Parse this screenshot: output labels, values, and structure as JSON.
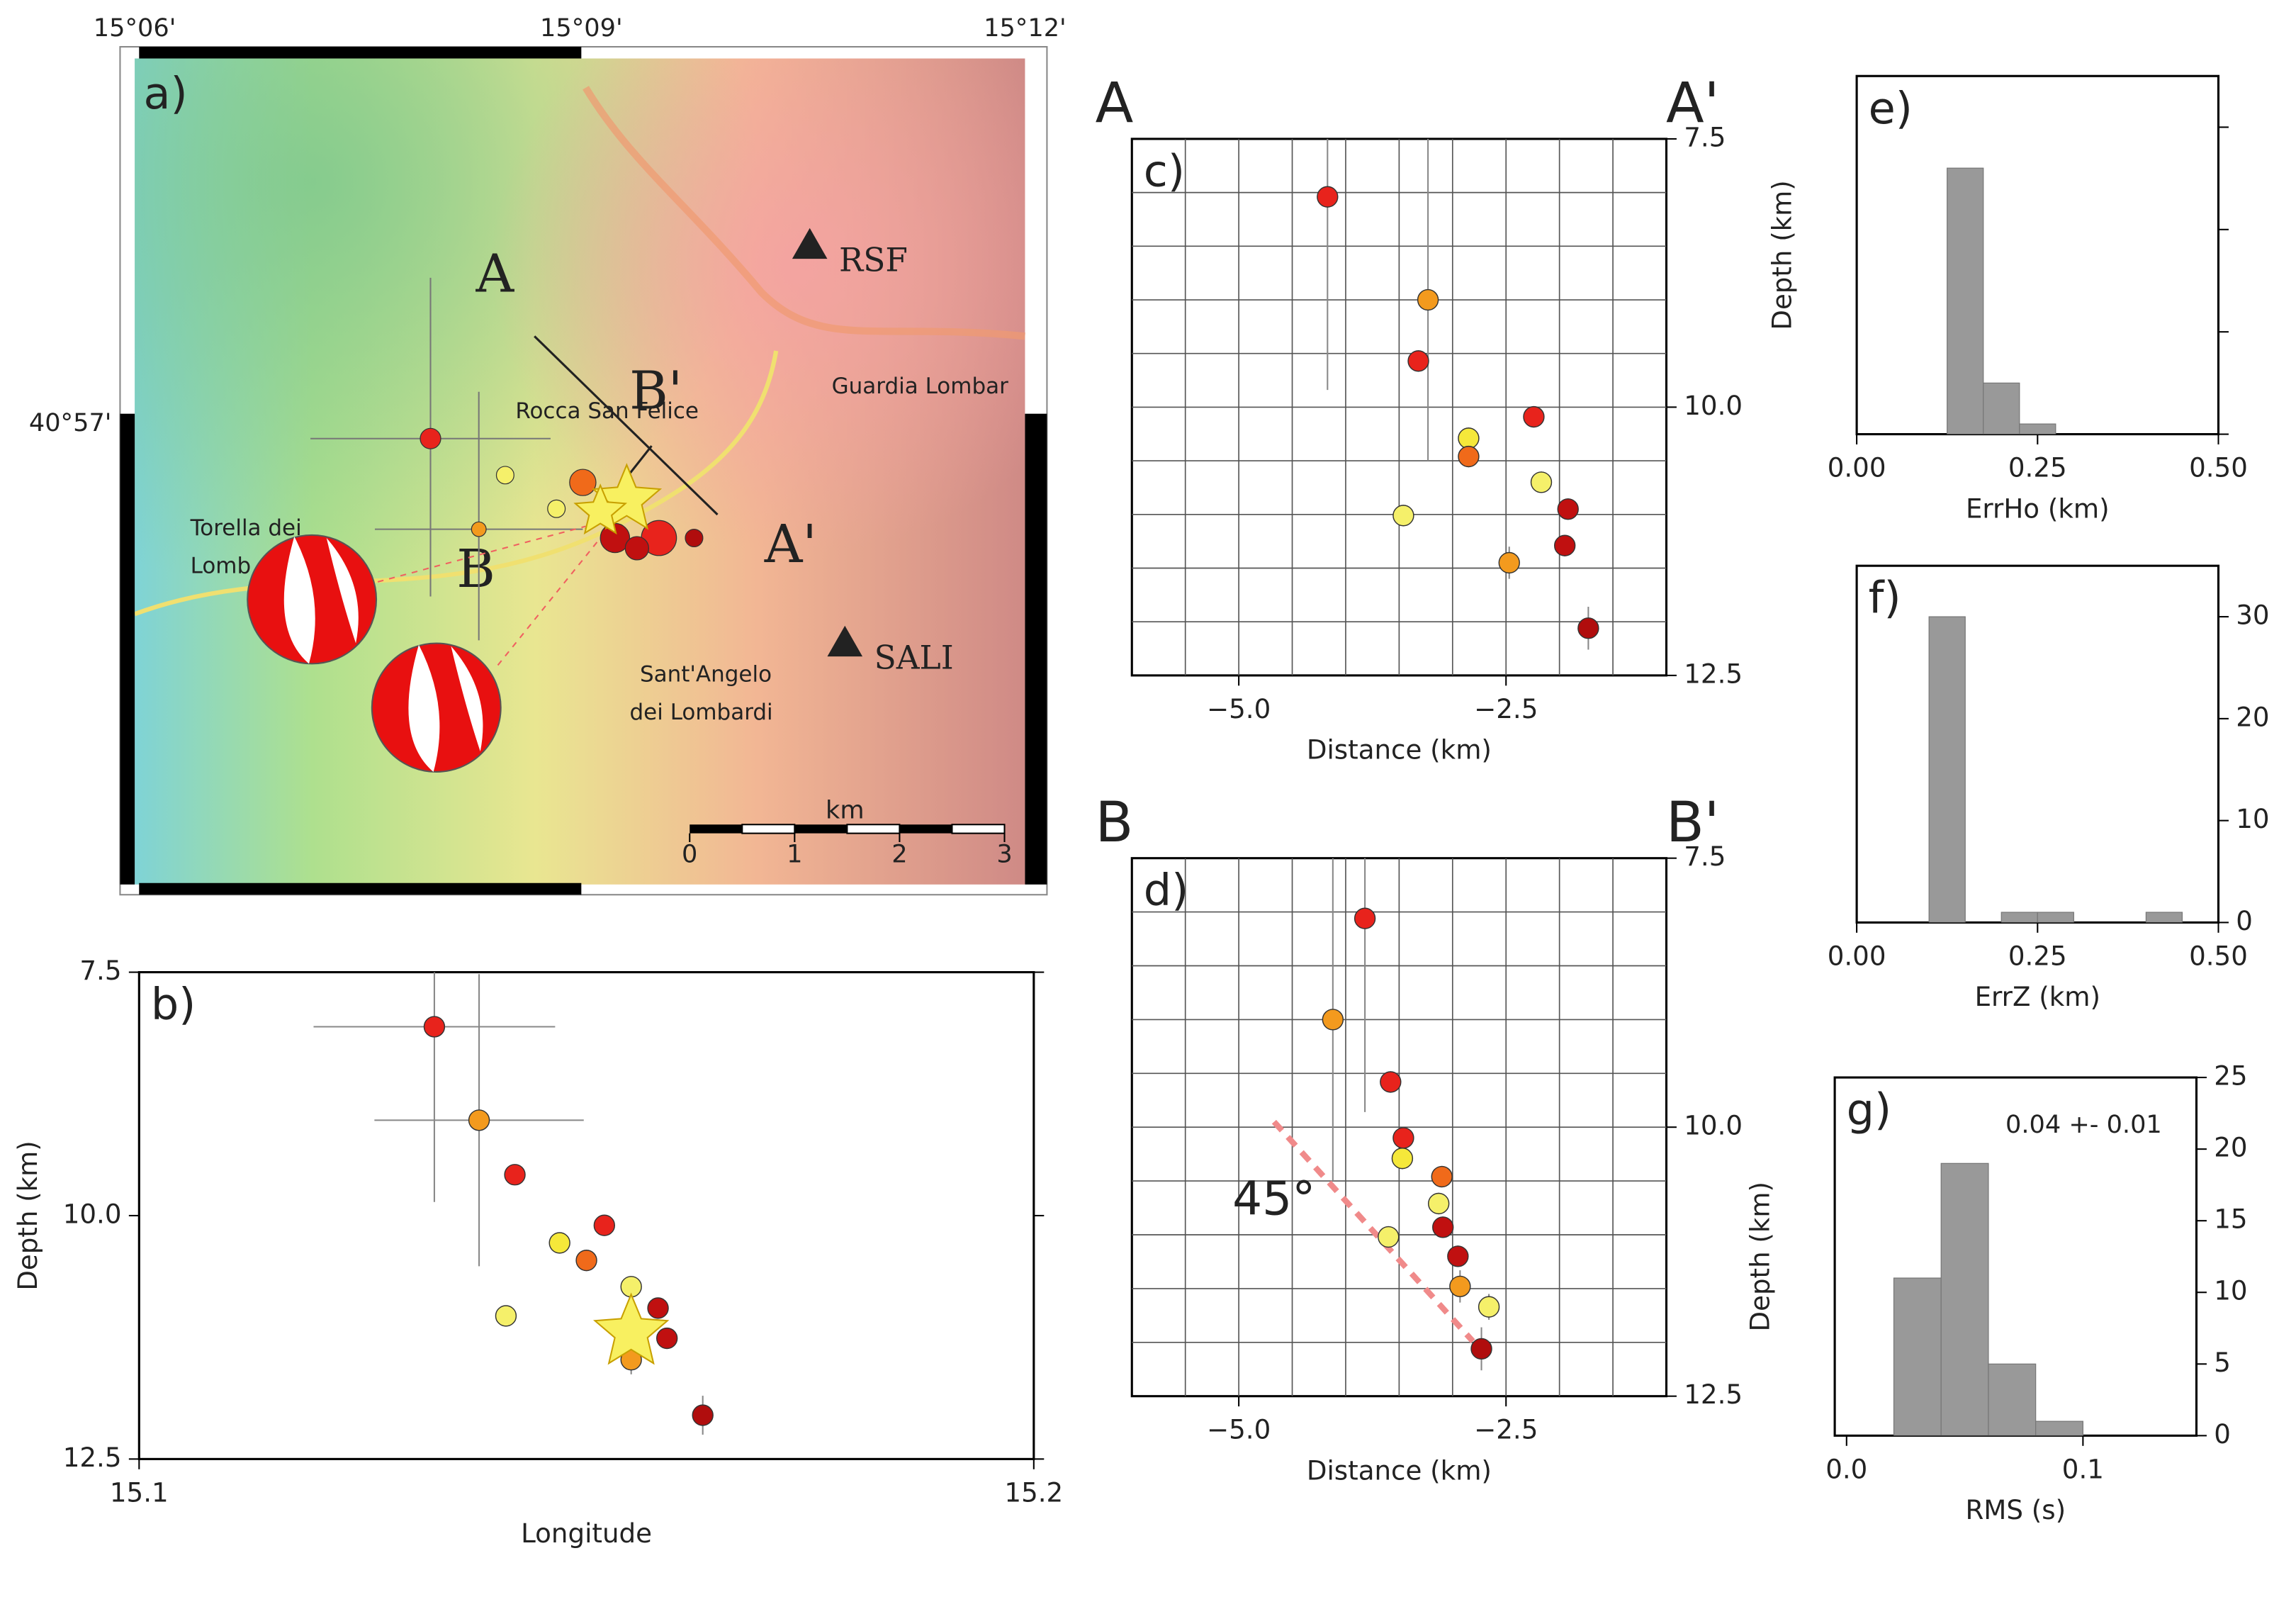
{
  "chart_data": [
    {
      "type": "map",
      "panel_label": "a)",
      "section_labels": [
        "A",
        "B'",
        "B",
        "A'"
      ],
      "stations": [
        "RSF",
        "SALI"
      ],
      "towns": [
        "Rocca San Felice",
        "Guardia Lombar",
        "Torella dei",
        "Lomb",
        "Sant'Angelo",
        "dei Lombardi"
      ],
      "lon_ticks": [
        "15°06'",
        "15°09'",
        "15°12'"
      ],
      "lat_ticks": [
        "40°57'"
      ],
      "scale_label": "km",
      "scale_ticks": [
        0,
        1,
        2,
        3
      ]
    },
    {
      "type": "scatter",
      "panel_label": "b)",
      "xlabel": "Longitude",
      "ylabel": "Depth (km)",
      "xlim": [
        15.1,
        15.2
      ],
      "xticks": [
        15.1,
        15.2
      ],
      "ylim": [
        7.5,
        12.5
      ],
      "yticks": [
        7.5,
        {
          "value": 10,
          "label": "10.0"
        },
        12.5
      ],
      "yinvert": true,
      "yaxis_side": "left",
      "x": [
        15.133,
        15.138,
        15.142,
        15.152,
        15.147,
        15.15,
        15.141,
        15.155,
        15.158,
        15.159,
        15.155,
        15.163
      ],
      "values": [
        8.06,
        9.02,
        9.58,
        10.1,
        10.28,
        10.46,
        11.03,
        10.73,
        10.95,
        11.26,
        11.48,
        12.05
      ],
      "xerr": [
        0.0135,
        0.0117,
        0.001,
        0.001,
        0.001,
        0.001,
        0.001,
        0.001,
        0.001,
        0.001,
        0.001,
        0.001
      ],
      "yerr": [
        1.8,
        1.5,
        0.1,
        0.1,
        0.1,
        0.1,
        0.1,
        0.1,
        0.1,
        0.1,
        0.15,
        0.2
      ],
      "colors": [
        "#e8231c",
        "#f39a1e",
        "#e8231c",
        "#e8231c",
        "#f5e83a",
        "#f06a1a",
        "#f5f06a",
        "#f5f06a",
        "#c01010",
        "#c01010",
        "#f39a1e",
        "#b00d0d"
      ],
      "star": {
        "x": 15.155,
        "value": 11.2
      }
    },
    {
      "type": "scatter",
      "panel_label": "c)",
      "section_start": "A",
      "section_end": "A'",
      "xlabel": "Distance (km)",
      "xlim": [
        -6,
        -1
      ],
      "xticks": [
        {
          "value": -5,
          "label": "−5.0"
        },
        {
          "value": -2.5,
          "label": "−2.5"
        }
      ],
      "ylim": [
        7.5,
        12.5
      ],
      "yticks": [
        7.5,
        {
          "value": 10,
          "label": "10.0"
        },
        12.5
      ],
      "yinvert": true,
      "yaxis_side": "right",
      "xgrid": [
        -5.5,
        -5,
        -4.5,
        -4,
        -3.5,
        -3,
        -2.5,
        -2,
        -1.5
      ],
      "ygrid": [
        8,
        8.5,
        9,
        9.5,
        10,
        10.5,
        11,
        11.5,
        12
      ],
      "x": [
        -4.17,
        -3.23,
        -3.32,
        -2.24,
        -2.85,
        -2.85,
        -3.46,
        -2.17,
        -1.92,
        -1.95,
        -2.47,
        -1.73
      ],
      "values": [
        8.04,
        9.0,
        9.57,
        10.09,
        10.29,
        10.46,
        11.01,
        10.7,
        10.95,
        11.29,
        11.45,
        12.06
      ],
      "yerr": [
        1.8,
        1.5,
        0.1,
        0.1,
        0.1,
        0.1,
        0.1,
        0.1,
        0.1,
        0.1,
        0.15,
        0.2
      ],
      "colors": [
        "#e8231c",
        "#f39a1e",
        "#e8231c",
        "#e8231c",
        "#f5e83a",
        "#f06a1a",
        "#f5f06a",
        "#f5f06a",
        "#c01010",
        "#c01010",
        "#f39a1e",
        "#b00d0d"
      ]
    },
    {
      "type": "scatter",
      "panel_label": "d)",
      "section_start": "B",
      "section_end": "B'",
      "xlabel": "Distance (km)",
      "xlim": [
        -6,
        -1
      ],
      "xticks": [
        {
          "value": -5,
          "label": "−5.0"
        },
        {
          "value": -2.5,
          "label": "−2.5"
        }
      ],
      "ylim": [
        7.5,
        12.5
      ],
      "yticks": [
        7.5,
        {
          "value": 10,
          "label": "10.0"
        },
        12.5
      ],
      "yinvert": true,
      "yaxis_side": "right",
      "xgrid": [
        -5.5,
        -5,
        -4.5,
        -4,
        -3.5,
        -3,
        -2.5,
        -2,
        -1.5
      ],
      "ygrid": [
        8,
        8.5,
        9,
        9.5,
        10,
        10.5,
        11,
        11.5,
        12
      ],
      "x": [
        -3.82,
        -4.12,
        -3.58,
        -3.46,
        -3.47,
        -3.1,
        -3.6,
        -3.13,
        -3.09,
        -2.95,
        -2.93,
        -2.66,
        -2.73
      ],
      "values": [
        8.06,
        9.0,
        9.58,
        10.1,
        10.29,
        10.46,
        11.02,
        10.71,
        10.93,
        11.2,
        11.48,
        11.67,
        12.06
      ],
      "yerr": [
        1.8,
        1.5,
        0.1,
        0.1,
        0.1,
        0.1,
        0.1,
        0.1,
        0.1,
        0.1,
        0.15,
        0.12,
        0.2
      ],
      "colors": [
        "#e8231c",
        "#f39a1e",
        "#e8231c",
        "#e8231c",
        "#f5e83a",
        "#f06a1a",
        "#f5f06a",
        "#f5f06a",
        "#c01010",
        "#c01010",
        "#f39a1e",
        "#f5f06a",
        "#b00d0d"
      ],
      "trend": {
        "x": [
          -4.67,
          -2.81
        ],
        "values": [
          9.95,
          11.99
        ],
        "color": "#f08a8a"
      },
      "annotation": "45°"
    },
    {
      "type": "histogram",
      "panel_label": "e)",
      "xlabel": "ErrHo (km)",
      "ylabel": "Depth (km)",
      "color": "#999999",
      "xlim": [
        0,
        0.5
      ],
      "xticks": [
        {
          "value": 0,
          "label": "0.00"
        },
        0.25,
        {
          "value": 0.5,
          "label": "0.50"
        }
      ],
      "ylim": [
        0,
        35
      ],
      "yticks": [
        0,
        10,
        20,
        30
      ],
      "ytick_labels": false,
      "yaxis_side": "right",
      "bins": [
        0.125,
        0.175,
        0.225,
        0.275,
        0.325
      ],
      "counts": [
        26,
        5,
        1,
        0
      ]
    },
    {
      "type": "histogram",
      "panel_label": "f)",
      "xlabel": "ErrZ (km)",
      "color": "#999999",
      "xlim": [
        0,
        0.5
      ],
      "xticks": [
        {
          "value": 0,
          "label": "0.00"
        },
        0.25,
        {
          "value": 0.5,
          "label": "0.50"
        }
      ],
      "ylim": [
        0,
        35
      ],
      "yticks": [
        0,
        10,
        20,
        30
      ],
      "yaxis_side": "right",
      "bins": [
        0.1,
        0.15,
        0.2,
        0.25,
        0.3,
        0.35,
        0.4,
        0.45
      ],
      "counts": [
        30,
        0,
        1,
        1,
        0,
        0,
        1
      ]
    },
    {
      "type": "histogram",
      "panel_label": "g)",
      "xlabel": "RMS (s)",
      "ylabel": "Depth (km)",
      "color": "#999999",
      "xlim": [
        -0.005,
        0.148
      ],
      "xticks": [
        {
          "value": 0,
          "label": "0.0"
        },
        0.1
      ],
      "ylim": [
        0,
        25
      ],
      "yticks": [
        0,
        5,
        10,
        15,
        20,
        25
      ],
      "yaxis_side": "right",
      "bins": [
        0.02,
        0.04,
        0.06,
        0.08,
        0.1
      ],
      "counts": [
        11,
        19,
        5,
        1
      ],
      "annotation": "0.04 +- 0.01"
    }
  ]
}
